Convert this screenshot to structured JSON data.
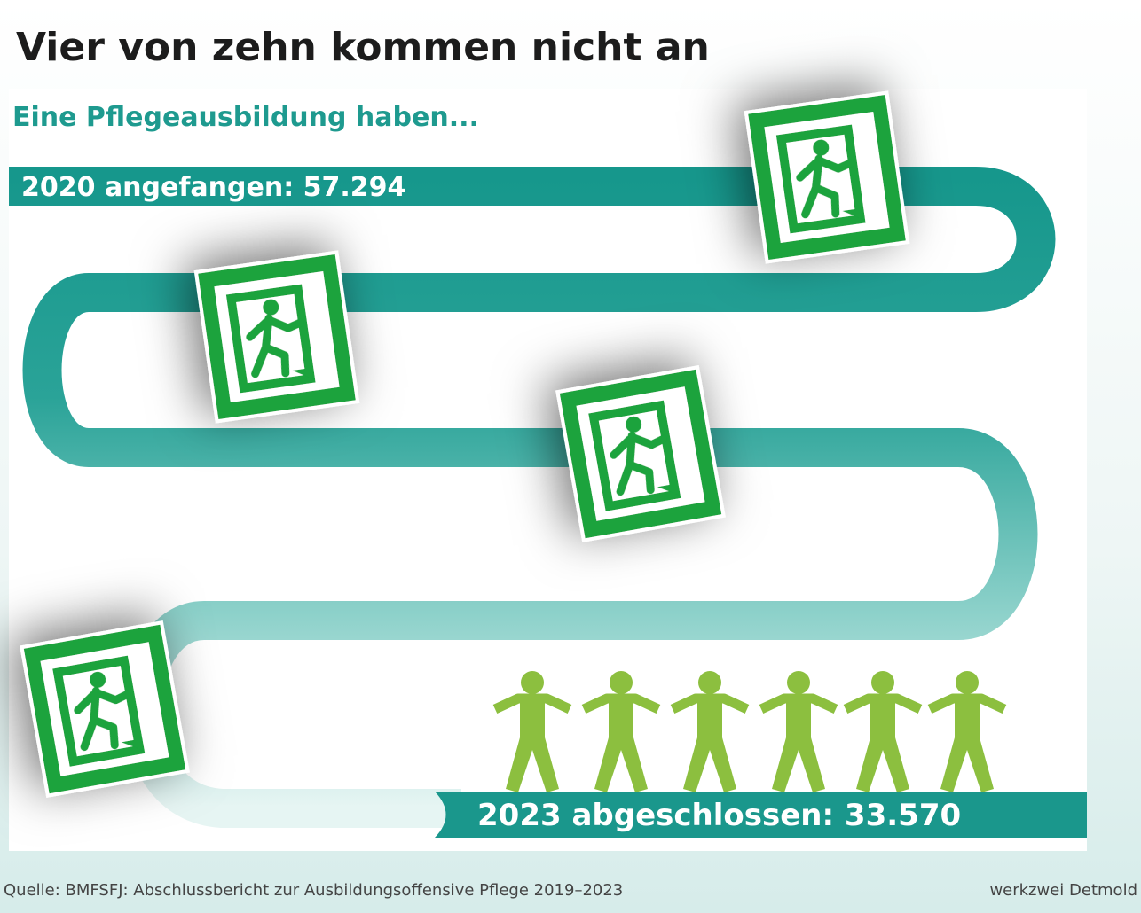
{
  "header": {
    "title": "Vier von zehn kommen nicht an",
    "subtitle": "Eine Pflegeausbildung haben..."
  },
  "path": {
    "start_label": "2020 angefangen: 57.294",
    "end_label": "2023 abgeschlossen: 33.570"
  },
  "footer": {
    "source": "Quelle: BMFSFJ: Abschlussbericht zur Ausbildungsoffensive Pflege 2019–2023",
    "credit": "werkzwei Detmold"
  }
}
